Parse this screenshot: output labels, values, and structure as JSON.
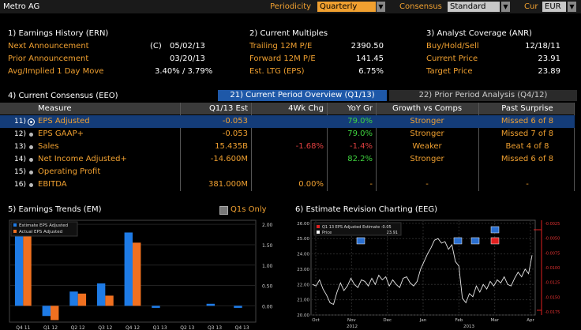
{
  "header": {
    "title": "Metro AG",
    "periodicity_label": "Periodicity",
    "periodicity_value": "Quarterly",
    "consensus_label": "Consensus",
    "consensus_value": "Standard",
    "cur_label": "Cur",
    "cur_value": "EUR"
  },
  "earnings_history": {
    "title": "1) Earnings History (ERN)",
    "next_label": "Next Announcement",
    "next_flag": "(C)",
    "next_value": "05/02/13",
    "prior_label": "Prior Announcement",
    "prior_value": "03/20/13",
    "move_label": "Avg/Implied 1 Day Move",
    "move_value": "3.40% / 3.79%"
  },
  "current_multiples": {
    "title": "2) Current Multiples",
    "trailing_label": "Trailing 12M P/E",
    "trailing_value": "2390.50",
    "forward_label": "Forward 12M P/E",
    "forward_value": "141.45",
    "ltg_label": "Est. LTG (EPS)",
    "ltg_value": "6.75%"
  },
  "analyst_coverage": {
    "title": "3) Analyst Coverage (ANR)",
    "bhs_label": "Buy/Hold/Sell",
    "bhs_value": "12/18/11",
    "price_label": "Current Price",
    "price_value": "23.91",
    "target_label": "Target Price",
    "target_value": "23.89"
  },
  "consensus": {
    "title": "4) Current Consensus (EEO)",
    "tab1": "21) Current Period Overview (Q1/13)",
    "tab2": "22) Prior Period Analysis (Q4/12)",
    "columns": [
      "Measure",
      "Q1/13 Est",
      "4Wk Chg",
      "YoY Gr",
      "Growth vs Comps",
      "Past Surprise"
    ],
    "rows": [
      {
        "num": "11)",
        "measure": "EPS Adjusted",
        "est": "-0.053",
        "chg": "",
        "yoy": "79.0%",
        "growth": "Stronger",
        "surprise": "Missed 6 of 8"
      },
      {
        "num": "12)",
        "measure": "EPS GAAP+",
        "est": "-0.053",
        "chg": "",
        "yoy": "79.0%",
        "growth": "Stronger",
        "surprise": "Missed 7 of 8"
      },
      {
        "num": "13)",
        "measure": "Sales",
        "est": "15.435B",
        "chg": "-1.68%",
        "yoy": "-1.4%",
        "growth": "Weaker",
        "surprise": "Beat 4 of 8"
      },
      {
        "num": "14)",
        "measure": "Net Income Adjusted+",
        "est": "-14.600M",
        "chg": "",
        "yoy": "82.2%",
        "growth": "Stronger",
        "surprise": "Missed 6 of 8"
      },
      {
        "num": "15)",
        "measure": "Operating Profit",
        "est": "",
        "chg": "",
        "yoy": "",
        "growth": "",
        "surprise": ""
      },
      {
        "num": "16)",
        "measure": "EBITDA",
        "est": "381.000M",
        "chg": "0.00%",
        "yoy": "-",
        "growth": "-",
        "surprise": "-"
      }
    ]
  },
  "earnings_trends": {
    "title": "5) Earnings Trends (EM)",
    "q1s_label": "Q1s Only",
    "colors": {
      "estimate": "#1e7be6",
      "actual": "#f07020"
    },
    "chart_data": {
      "type": "bar",
      "categories": [
        "Q4 11",
        "Q1 12",
        "Q2 12",
        "Q3 12",
        "Q4 12",
        "Q1 13",
        "Q2 13",
        "Q3 13",
        "Q4 13"
      ],
      "series": [
        {
          "name": "Estimate EPS Adjusted",
          "values": [
            1.98,
            -0.25,
            0.35,
            0.55,
            1.8,
            -0.05,
            null,
            0.05,
            -0.05
          ]
        },
        {
          "name": "Actual EPS Adjusted",
          "values": [
            1.82,
            -0.35,
            0.3,
            0.25,
            1.55,
            null,
            null,
            null,
            null
          ]
        }
      ],
      "y_ticks": [
        "2.00",
        "1.50",
        "1.00",
        "0.50",
        "0.00"
      ],
      "ylim": [
        -0.4,
        2.1
      ]
    }
  },
  "estimate_revision": {
    "title": "6) Estimate Revision Charting (EEG)",
    "legend": [
      {
        "label": "Q1 13 EPS Adjusted Estimate -0.05",
        "color": "#e02020"
      },
      {
        "label": "Price",
        "value": "23.91",
        "color": "#ffffff"
      }
    ],
    "chart_data": {
      "type": "line",
      "x_labels": [
        "Oct",
        "Nov",
        "Dec",
        "Jan",
        "Feb",
        "Mar",
        "Apr"
      ],
      "year_labels": [
        "2012",
        "2013"
      ],
      "y_ticks_left": [
        "26.00",
        "25.00",
        "24.00",
        "23.00",
        "22.00",
        "21.00",
        "20.00"
      ],
      "y_ticks_right": [
        "-0.0025",
        "-0.0050",
        "-0.0075",
        "-0.0100",
        "-0.0125",
        "-0.0150",
        "-0.0175"
      ],
      "ylim": [
        20,
        26.2
      ],
      "price": [
        22.0,
        21.9,
        22.3,
        21.7,
        21.3,
        20.8,
        20.7,
        21.5,
        22.1,
        21.6,
        21.9,
        22.4,
        22.0,
        21.8,
        22.3,
        22.2,
        21.9,
        22.4,
        22.0,
        22.6,
        22.3,
        22.5,
        21.9,
        22.3,
        22.0,
        21.8,
        22.4,
        22.5,
        22.1,
        21.9,
        22.2,
        23.0,
        23.5,
        24.0,
        24.4,
        24.9,
        25.0,
        24.7,
        24.8,
        24.3,
        24.6,
        23.5,
        23.2,
        21.1,
        20.8,
        21.4,
        21.2,
        21.9,
        21.5,
        22.0,
        21.7,
        22.2,
        21.9,
        22.3,
        22.1,
        22.5,
        22.0,
        21.9,
        22.4,
        22.8,
        22.5,
        23.0,
        22.7,
        23.91
      ]
    }
  }
}
